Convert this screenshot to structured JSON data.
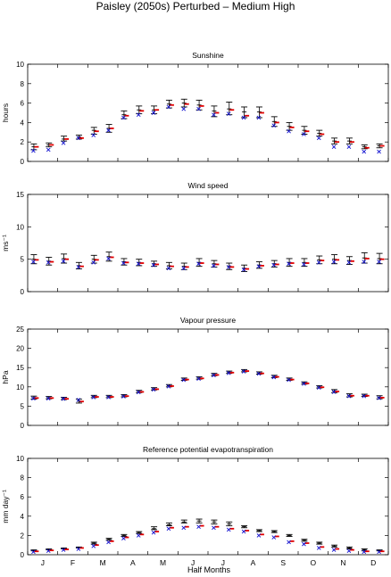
{
  "title": "Paisley (2050s) Perturbed – Medium High",
  "x_axis": {
    "label": "Half Months",
    "month_labels": [
      "J",
      "F",
      "M",
      "A",
      "M",
      "J",
      "J",
      "A",
      "S",
      "O",
      "N",
      "D"
    ]
  },
  "marker_legend": {
    "black_errorbar": "mean ± range (black)",
    "red_bar": "red dash",
    "blue_cross": "blue cross"
  },
  "colors": {
    "black": "#000000",
    "red": "#e00000",
    "blue": "#1010d0"
  },
  "chart_data": [
    {
      "type": "scatter",
      "title": "Sunshine",
      "ylabel": "hours",
      "ylim": [
        0,
        10
      ],
      "yticks": [
        0,
        2,
        4,
        6,
        8,
        10
      ],
      "x": [
        1,
        2,
        3,
        4,
        5,
        6,
        7,
        8,
        9,
        10,
        11,
        12,
        13,
        14,
        15,
        16,
        17,
        18,
        19,
        20,
        21,
        22,
        23,
        24
      ],
      "series": [
        {
          "marker": "errorbar",
          "color": "black",
          "values": [
            1.5,
            1.7,
            2.3,
            2.5,
            3.2,
            3.4,
            4.8,
            5.3,
            5.3,
            5.9,
            6.0,
            5.8,
            5.2,
            5.4,
            5.1,
            5.1,
            4.1,
            3.6,
            3.2,
            2.9,
            2.1,
            2.1,
            1.5,
            1.6
          ],
          "lower": [
            1.2,
            1.5,
            2.1,
            2.3,
            2.8,
            3.0,
            4.4,
            4.9,
            4.9,
            5.5,
            5.6,
            5.3,
            4.6,
            4.8,
            4.5,
            4.5,
            3.6,
            3.2,
            2.8,
            2.6,
            1.8,
            1.8,
            1.3,
            1.4
          ],
          "upper": [
            1.8,
            1.9,
            2.6,
            2.7,
            3.5,
            3.8,
            5.2,
            5.7,
            5.7,
            6.3,
            6.4,
            6.3,
            5.7,
            6.1,
            5.6,
            5.6,
            4.6,
            4.0,
            3.6,
            3.2,
            2.4,
            2.4,
            1.7,
            1.8
          ]
        },
        {
          "marker": "dash",
          "color": "red",
          "values": [
            1.5,
            1.7,
            2.3,
            2.4,
            3.1,
            3.4,
            4.7,
            5.2,
            5.3,
            5.8,
            5.9,
            5.7,
            5.0,
            5.3,
            4.7,
            5.0,
            4.0,
            3.5,
            3.1,
            2.8,
            2.0,
            2.0,
            1.4,
            1.6
          ]
        },
        {
          "marker": "cross",
          "color": "blue",
          "values": [
            1.1,
            1.2,
            1.9,
            2.4,
            2.7,
            3.2,
            4.5,
            4.8,
            5.0,
            5.6,
            5.4,
            5.4,
            4.8,
            4.9,
            4.5,
            4.5,
            3.7,
            3.1,
            2.8,
            2.4,
            1.5,
            1.5,
            1.0,
            1.0
          ]
        }
      ]
    },
    {
      "type": "scatter",
      "title": "Wind speed",
      "ylabel": "ms⁻¹",
      "ylim": [
        0,
        15
      ],
      "yticks": [
        0,
        5,
        10,
        15
      ],
      "x": [
        1,
        2,
        3,
        4,
        5,
        6,
        7,
        8,
        9,
        10,
        11,
        12,
        13,
        14,
        15,
        16,
        17,
        18,
        19,
        20,
        21,
        22,
        23,
        24
      ],
      "series": [
        {
          "marker": "errorbar",
          "color": "black",
          "values": [
            5.0,
            4.7,
            5.1,
            4.0,
            5.0,
            5.4,
            4.6,
            4.5,
            4.3,
            4.0,
            3.9,
            4.5,
            4.3,
            3.9,
            3.6,
            4.1,
            4.3,
            4.5,
            4.5,
            4.9,
            5.0,
            4.8,
            5.2,
            5.1
          ],
          "lower": [
            4.3,
            4.1,
            4.4,
            3.5,
            4.4,
            4.7,
            4.1,
            4.0,
            3.9,
            3.5,
            3.4,
            3.9,
            3.8,
            3.4,
            3.1,
            3.6,
            3.8,
            3.9,
            3.9,
            4.3,
            4.3,
            4.2,
            4.4,
            4.3
          ],
          "upper": [
            5.7,
            5.3,
            5.8,
            4.5,
            5.6,
            6.1,
            5.1,
            5.0,
            4.7,
            4.5,
            4.4,
            5.1,
            4.8,
            4.4,
            4.1,
            4.6,
            4.8,
            5.1,
            5.1,
            5.5,
            5.7,
            5.4,
            6.0,
            5.9
          ]
        },
        {
          "marker": "dash",
          "color": "red",
          "values": [
            4.9,
            4.6,
            5.0,
            3.9,
            4.9,
            5.3,
            4.5,
            4.4,
            4.2,
            3.9,
            3.8,
            4.4,
            4.2,
            3.8,
            3.5,
            4.0,
            4.2,
            4.4,
            4.4,
            4.8,
            4.9,
            4.7,
            5.1,
            5.0
          ]
        },
        {
          "marker": "cross",
          "color": "blue",
          "values": [
            4.6,
            4.5,
            4.7,
            3.8,
            4.5,
            5.1,
            4.4,
            4.3,
            4.1,
            3.6,
            3.6,
            4.3,
            4.0,
            3.8,
            3.4,
            3.9,
            4.1,
            4.3,
            4.2,
            4.5,
            4.6,
            4.5,
            4.6,
            4.6
          ]
        }
      ]
    },
    {
      "type": "scatter",
      "title": "Vapour pressure",
      "ylabel": "hPa",
      "ylim": [
        0,
        25
      ],
      "yticks": [
        0,
        5,
        10,
        15,
        20,
        25
      ],
      "x": [
        1,
        2,
        3,
        4,
        5,
        6,
        7,
        8,
        9,
        10,
        11,
        12,
        13,
        14,
        15,
        16,
        17,
        18,
        19,
        20,
        21,
        22,
        23,
        24
      ],
      "series": [
        {
          "marker": "errorbar",
          "color": "black",
          "values": [
            7.2,
            7.2,
            7.0,
            6.3,
            7.5,
            7.5,
            7.7,
            8.8,
            9.5,
            10.3,
            12.0,
            12.3,
            13.2,
            13.8,
            14.2,
            13.6,
            12.7,
            12.0,
            11.0,
            10.0,
            8.9,
            7.8,
            7.8,
            7.3
          ],
          "lower": [
            6.8,
            6.9,
            6.7,
            5.8,
            7.2,
            7.2,
            7.4,
            8.5,
            9.2,
            10.0,
            11.7,
            12.0,
            12.9,
            13.5,
            13.9,
            13.3,
            12.4,
            11.7,
            10.7,
            9.7,
            8.5,
            7.4,
            7.5,
            6.9
          ],
          "upper": [
            7.6,
            7.5,
            7.3,
            6.8,
            7.8,
            7.8,
            8.0,
            9.1,
            9.8,
            10.6,
            12.3,
            12.6,
            13.5,
            14.1,
            14.5,
            13.9,
            13.0,
            12.3,
            11.3,
            10.3,
            9.3,
            8.2,
            8.1,
            7.7
          ]
        },
        {
          "marker": "dash",
          "color": "red",
          "values": [
            7.1,
            7.1,
            6.9,
            6.2,
            7.4,
            7.4,
            7.6,
            8.7,
            9.4,
            10.2,
            11.9,
            12.2,
            13.1,
            13.7,
            14.1,
            13.5,
            12.6,
            11.9,
            10.9,
            9.9,
            8.8,
            7.7,
            7.7,
            7.2
          ]
        },
        {
          "marker": "cross",
          "color": "blue",
          "values": [
            7.0,
            7.0,
            6.9,
            6.6,
            7.3,
            7.3,
            7.5,
            8.6,
            9.3,
            10.1,
            11.8,
            12.1,
            13.0,
            13.6,
            14.0,
            13.4,
            12.5,
            11.8,
            10.8,
            9.8,
            8.7,
            7.6,
            7.6,
            7.1
          ]
        }
      ]
    },
    {
      "type": "scatter",
      "title": "Reference potential evapotranspiration",
      "ylabel": "mm day⁻¹",
      "ylim": [
        0,
        10
      ],
      "yticks": [
        0,
        2,
        4,
        6,
        8,
        10
      ],
      "x": [
        1,
        2,
        3,
        4,
        5,
        6,
        7,
        8,
        9,
        10,
        11,
        12,
        13,
        14,
        15,
        16,
        17,
        18,
        19,
        20,
        21,
        22,
        23,
        24
      ],
      "series": [
        {
          "marker": "errorbar",
          "color": "black",
          "values": [
            0.45,
            0.55,
            0.65,
            0.75,
            1.2,
            1.6,
            2.0,
            2.3,
            2.7,
            3.1,
            3.4,
            3.5,
            3.4,
            3.2,
            2.9,
            2.5,
            2.4,
            2.0,
            1.5,
            1.2,
            0.9,
            0.7,
            0.5,
            0.45
          ],
          "lower": [
            0.4,
            0.5,
            0.6,
            0.7,
            1.1,
            1.5,
            1.9,
            2.2,
            2.6,
            3.0,
            3.3,
            3.3,
            3.2,
            3.0,
            2.8,
            2.4,
            2.3,
            1.9,
            1.4,
            1.1,
            0.8,
            0.6,
            0.4,
            0.4
          ],
          "upper": [
            0.5,
            0.6,
            0.7,
            0.8,
            1.3,
            1.7,
            2.1,
            2.4,
            2.9,
            3.3,
            3.6,
            3.7,
            3.6,
            3.4,
            3.0,
            2.6,
            2.5,
            2.1,
            1.6,
            1.3,
            1.0,
            0.8,
            0.6,
            0.5
          ]
        },
        {
          "marker": "dash",
          "color": "red",
          "values": [
            0.35,
            0.45,
            0.55,
            0.7,
            1.0,
            1.4,
            1.8,
            2.1,
            2.4,
            2.8,
            2.9,
            3.0,
            2.9,
            2.7,
            2.5,
            2.1,
            1.9,
            1.4,
            1.2,
            0.8,
            0.6,
            0.5,
            0.35,
            0.35
          ]
        },
        {
          "marker": "cross",
          "color": "blue",
          "values": [
            0.3,
            0.4,
            0.5,
            0.6,
            0.9,
            1.3,
            1.7,
            2.0,
            2.3,
            2.7,
            2.8,
            2.9,
            2.8,
            2.6,
            2.4,
            2.0,
            1.8,
            1.3,
            1.1,
            0.7,
            0.5,
            0.4,
            0.3,
            0.3
          ]
        }
      ]
    }
  ]
}
